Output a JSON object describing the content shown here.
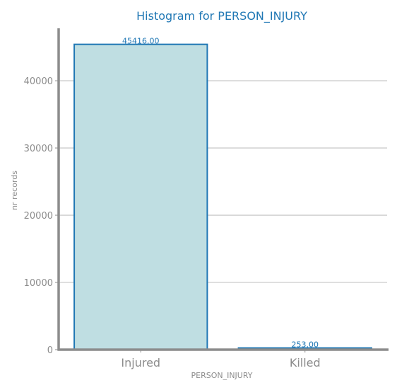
{
  "chart_data": {
    "type": "bar",
    "title": "Histogram for PERSON_INJURY",
    "xlabel": "PERSON_INJURY",
    "ylabel": "nr records",
    "categories": [
      "Injured",
      "Killed"
    ],
    "values": [
      45416,
      253
    ],
    "value_labels": [
      "45416.00",
      "253.00"
    ],
    "ylim": [
      0,
      47800
    ],
    "yticks": [
      0,
      10000,
      20000,
      30000,
      40000
    ],
    "ytick_labels": [
      "0",
      "10000",
      "20000",
      "30000",
      "40000"
    ],
    "grid": "horizontal",
    "legend": "none",
    "colors": {
      "bar_fill": "#bfdee2",
      "bar_edge": "#1f77b4",
      "title": "#1f77b4",
      "data_label": "#1f77b4",
      "axis": "#8c8c8c",
      "grid": "#cccccc",
      "tick_text": "#8c8c8c"
    }
  }
}
